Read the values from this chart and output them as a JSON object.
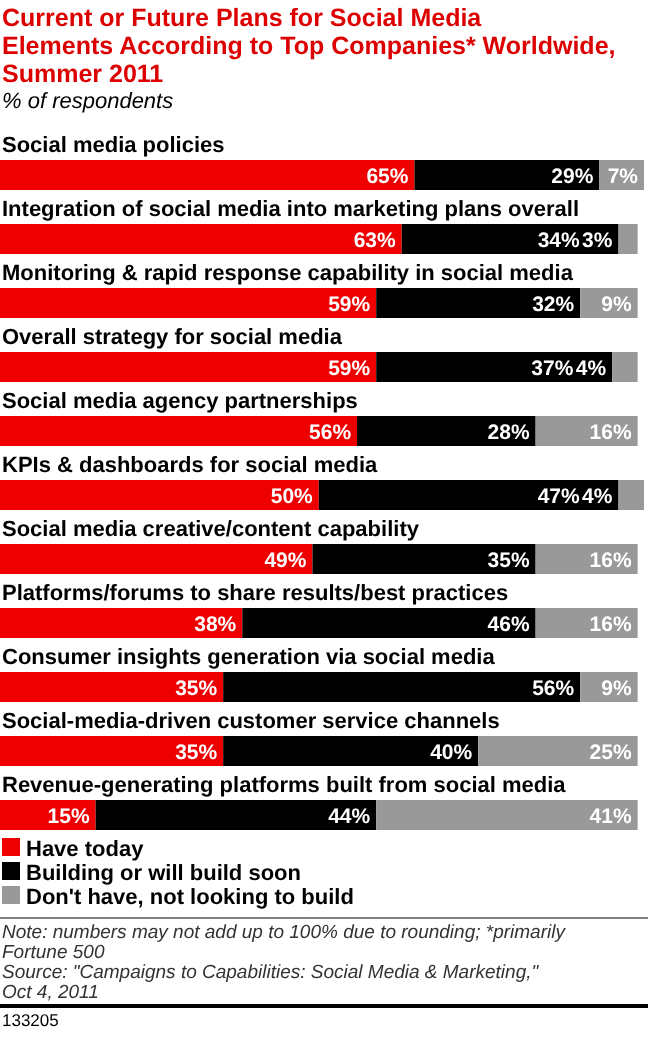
{
  "chart_data": {
    "type": "bar",
    "orientation": "horizontal",
    "stacked": true,
    "legend": "bottom",
    "title": "Current or Future Plans for Social Media Elements According to Top Companies* Worldwide, Summer 2011",
    "subtitle": "% of respondents",
    "categories": [
      "Social media policies",
      "Integration of social media into marketing plans overall",
      "Monitoring & rapid response capability in social media",
      "Overall strategy for social media",
      "Social media agency partnerships",
      "KPIs & dashboards for social media",
      "Social media creative/content capability",
      "Platforms/forums to share results/best practices",
      "Consumer insights generation via social media",
      "Social-media-driven customer service channels",
      "Revenue-generating platforms built from social media"
    ],
    "series": [
      {
        "name": "Have today",
        "color": "#ee0000",
        "values": [
          65,
          63,
          59,
          59,
          56,
          50,
          49,
          38,
          35,
          35,
          15
        ],
        "value_labels": [
          "65%",
          "63%",
          "59%",
          "59%",
          "56%",
          "50%",
          "49%",
          "38%",
          "35%",
          "35%",
          "15%"
        ]
      },
      {
        "name": "Building or will build soon",
        "color": "#000000",
        "values": [
          29,
          34,
          32,
          37,
          28,
          47,
          35,
          46,
          56,
          40,
          44
        ],
        "value_labels": [
          "29%",
          "34%",
          "32%",
          "37%",
          "28%",
          "47%",
          "35%",
          "46%",
          "56%",
          "40%",
          "44%"
        ]
      },
      {
        "name": "Don't have, not looking to build",
        "color": "#999999",
        "values": [
          7,
          3,
          9,
          4,
          16,
          4,
          16,
          16,
          9,
          25,
          41
        ],
        "value_labels": [
          "7%",
          "3%",
          "9%",
          "4%",
          "16%",
          "4%",
          "16%",
          "16%",
          "9%",
          "25%",
          "41%"
        ]
      }
    ],
    "annotations": [
      "Note: numbers may not add up to 100% due to rounding; *primarily Fortune 500",
      "Source: \"Campaigns to Capabilities: Social Media & Marketing,\" Oct 4, 2011",
      "133205"
    ]
  }
}
